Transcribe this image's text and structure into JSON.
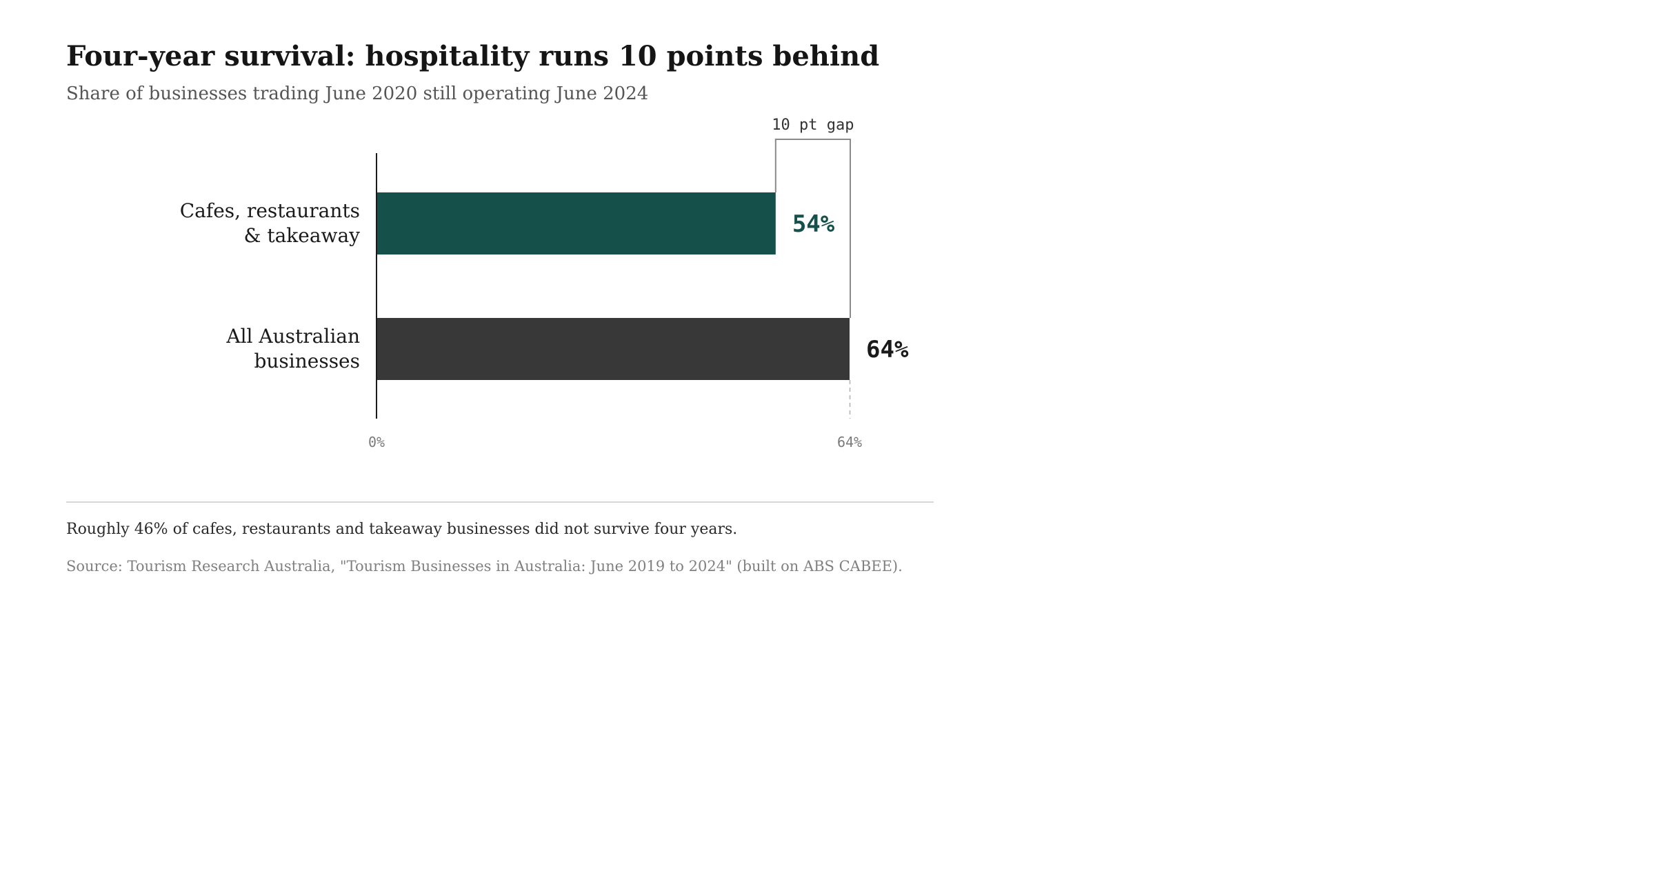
{
  "chart_data": {
    "type": "bar",
    "orientation": "horizontal",
    "title": "Four-year survival: hospitality runs 10 points behind",
    "subtitle": "Share of businesses trading June 2020 still operating June 2024",
    "categories": [
      [
        "Cafes, restaurants",
        "& takeaway"
      ],
      [
        "All Australian",
        "businesses"
      ]
    ],
    "values": [
      54,
      64
    ],
    "value_labels": [
      "54%",
      "64%"
    ],
    "bar_colors": [
      "#16504b",
      "#383838"
    ],
    "value_label_colors": [
      "#16504b",
      "#1a1a1a"
    ],
    "xlim": [
      0,
      64
    ],
    "x_tick_values": [
      0,
      64
    ],
    "x_tick_labels": [
      "0%",
      "64%"
    ],
    "gap_annotation": {
      "label": "10 pt gap",
      "from": 54,
      "to": 64
    },
    "xlabel": "",
    "ylabel": "",
    "grid": false,
    "legend": "none"
  },
  "footer": {
    "note": "Roughly 46% of cafes, restaurants and takeaway businesses did not survive four years.",
    "source": "Source: Tourism Research Australia, \"Tourism Businesses in Australia: June 2019 to 2024\" (built on ABS CABEE)."
  }
}
